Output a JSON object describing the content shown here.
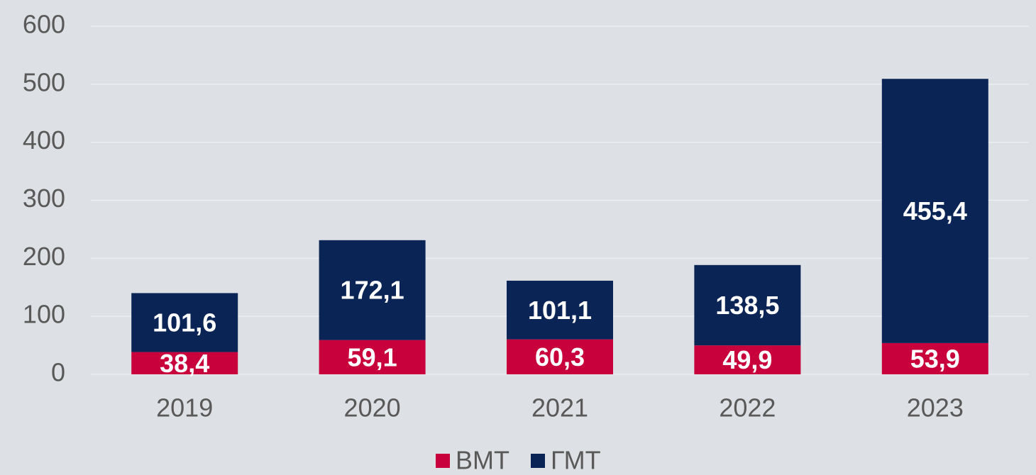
{
  "chart_data": {
    "type": "stacked_bar",
    "categories": [
      "2019",
      "2020",
      "2021",
      "2022",
      "2023"
    ],
    "series": [
      {
        "name": "ВМТ",
        "color": "#c8003c",
        "values": [
          38.4,
          59.1,
          60.3,
          49.9,
          53.9
        ],
        "value_labels": [
          "38,4",
          "59,1",
          "60,3",
          "49,9",
          "53,9"
        ]
      },
      {
        "name": "ГМТ",
        "color": "#0a2455",
        "values": [
          101.6,
          172.1,
          101.1,
          138.5,
          455.4
        ],
        "value_labels": [
          "101,6",
          "172,1",
          "101,1",
          "138,5",
          "455,4"
        ]
      }
    ],
    "ylim": [
      0,
      600
    ],
    "yticks": [
      0,
      100,
      200,
      300,
      400,
      500,
      600
    ],
    "grid": true,
    "legend": "bottom"
  }
}
